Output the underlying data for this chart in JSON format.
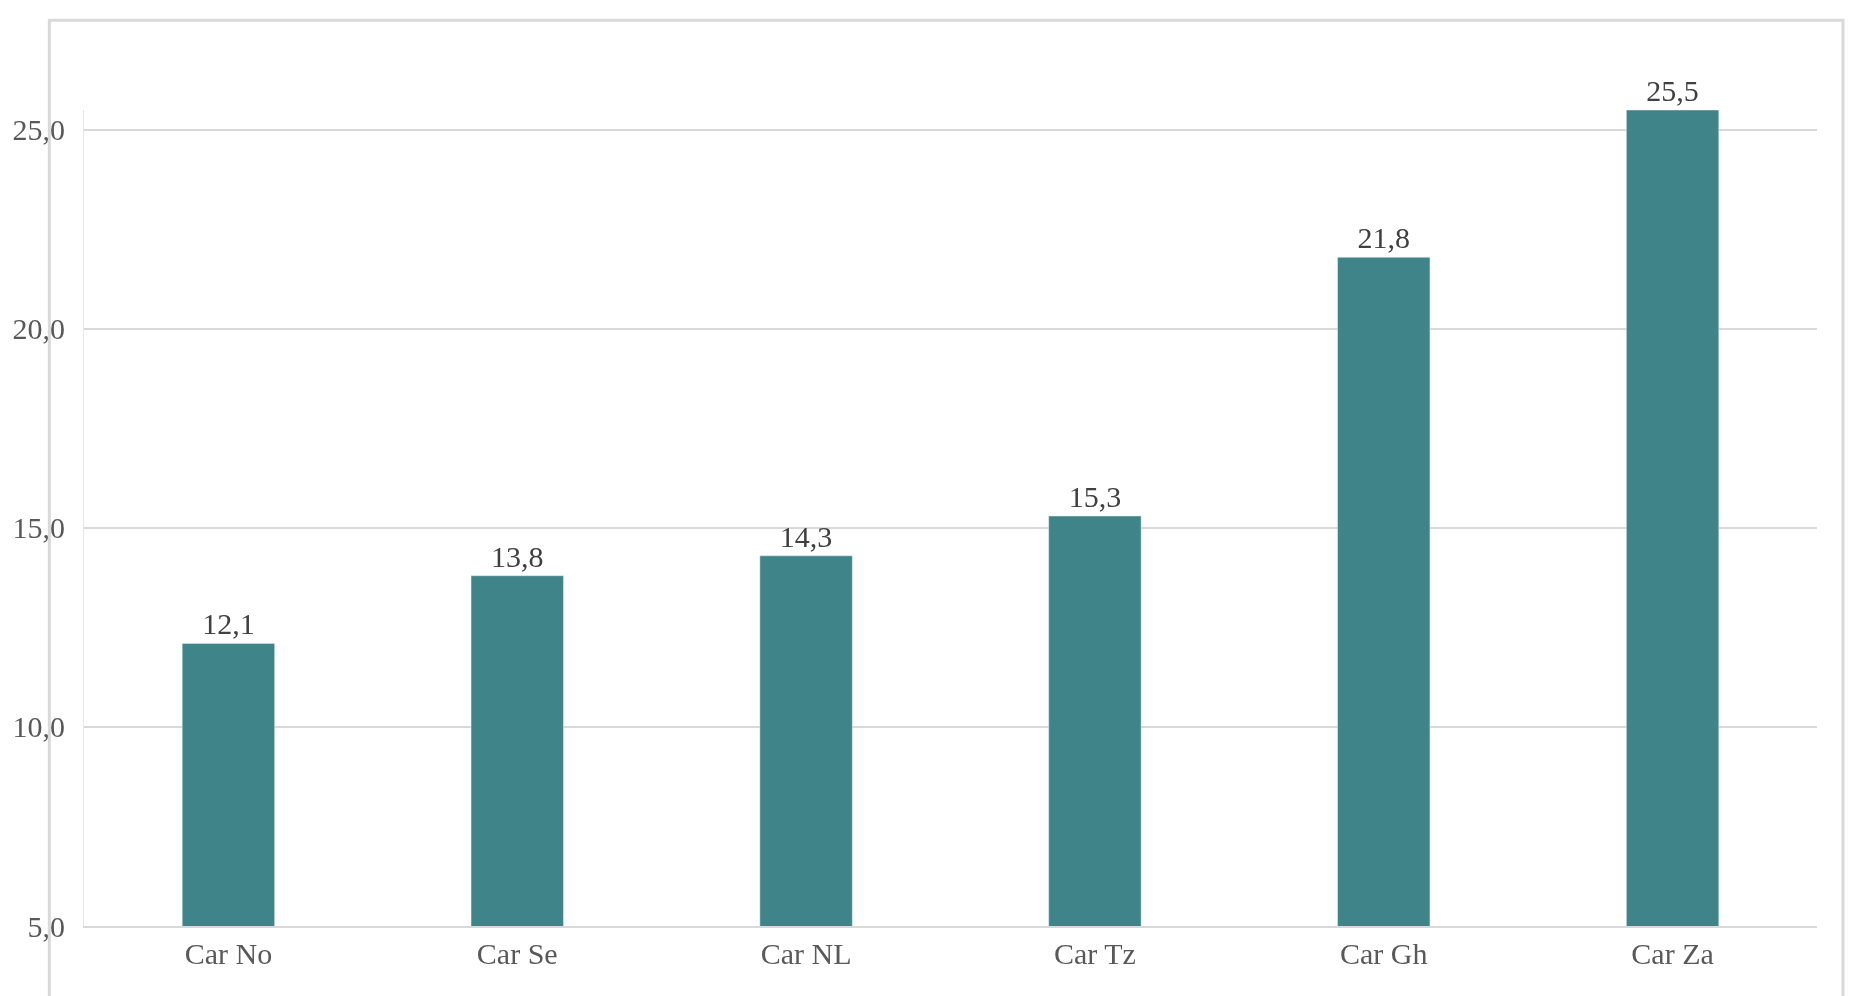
{
  "chart_data": {
    "type": "bar",
    "categories": [
      "Car No",
      "Car Se",
      "Car NL",
      "Car Tz",
      "Car Gh",
      "Car Za"
    ],
    "values": [
      12.1,
      13.8,
      14.3,
      15.3,
      21.8,
      25.5
    ],
    "value_labels": [
      "12,1",
      "13,8",
      "14,3",
      "15,3",
      "21,8",
      "25,5"
    ],
    "color": "#3f8489",
    "ylim": [
      5,
      25.5
    ],
    "yticks": [
      {
        "value": 5,
        "label": "5,0"
      },
      {
        "value": 10,
        "label": "10,0"
      },
      {
        "value": 15,
        "label": "15,0"
      },
      {
        "value": 20,
        "label": "20,0"
      },
      {
        "value": 25,
        "label": "25,0"
      }
    ],
    "grid": "y",
    "legend": false
  }
}
